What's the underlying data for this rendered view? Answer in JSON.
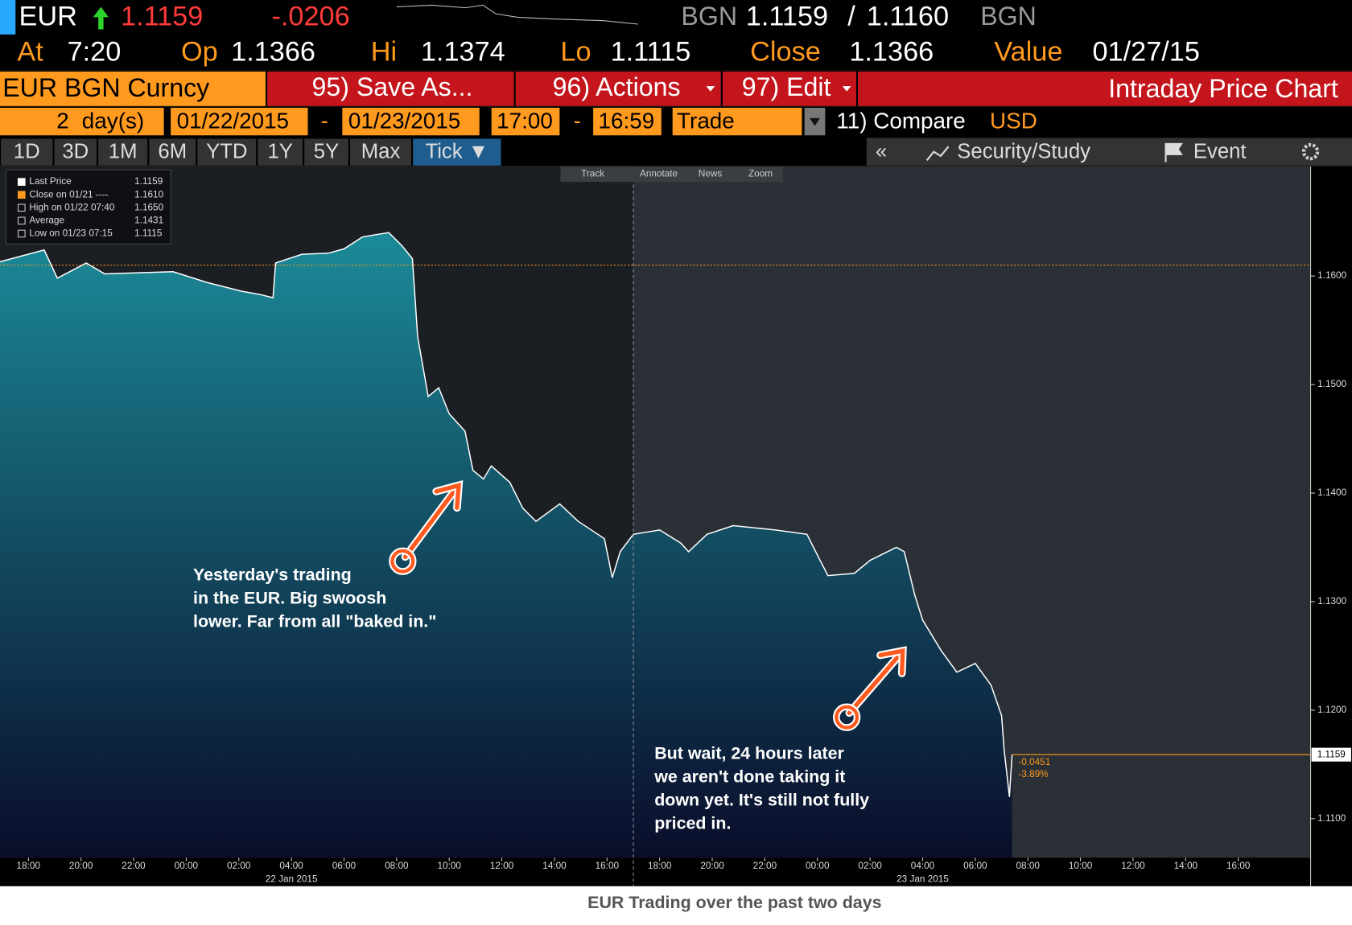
{
  "header": {
    "ticker": "EUR",
    "price": "1.1159",
    "change": "-.0206",
    "bid_source": "BGN",
    "bid": "1.1159",
    "separator": "/",
    "ask": "1.1160",
    "ask_source": "BGN",
    "fields": [
      {
        "label": "At",
        "value": "7:20"
      },
      {
        "label": "Op",
        "value": "1.1366"
      },
      {
        "label": "Hi",
        "value": "1.1374"
      },
      {
        "label": "Lo",
        "value": "1.1115"
      },
      {
        "label": "Close",
        "value": "1.1366"
      },
      {
        "label": "Value",
        "value": "01/27/15"
      }
    ]
  },
  "toolbar": {
    "security": "EUR BGN Curncy",
    "buttons": [
      "95) Save As...",
      "96) Actions",
      "97) Edit"
    ],
    "title": "Intraday Price Chart"
  },
  "settings": {
    "days": "2",
    "days_unit": "day(s)",
    "start_date": "01/22/2015",
    "dash": "-",
    "end_date": "01/23/2015",
    "start_time": "17:00",
    "end_time": "16:59",
    "type": "Trade",
    "compare": "11) Compare",
    "currency": "USD"
  },
  "tabs": {
    "periods": [
      "1D",
      "3D",
      "1M",
      "6M",
      "YTD",
      "1Y",
      "5Y",
      "Max",
      "Tick ▼"
    ],
    "collapse": "«",
    "study": "Security/Study",
    "event": "Event"
  },
  "chart_tools": [
    "Track",
    "Annotate",
    "News",
    "Zoom"
  ],
  "legend": [
    {
      "label": "Last Price",
      "value": "1.1159"
    },
    {
      "label": "Close on 01/21 ----",
      "value": "1.1610"
    },
    {
      "label": "High on 01/22 07:40",
      "value": "1.1650"
    },
    {
      "label": "Average",
      "value": "1.1431"
    },
    {
      "label": "Low on 01/23 07:15",
      "value": "1.1115"
    }
  ],
  "chart_data": {
    "type": "area",
    "x": [
      -1.1,
      0.6,
      1.1,
      2.2,
      2.9,
      4.2,
      5.5,
      6.8,
      8.1,
      8.8,
      9.3,
      9.4,
      10.4,
      11.4,
      12.0,
      12.7,
      13.7,
      14.2,
      14.6,
      14.8,
      15.2,
      15.6,
      16.0,
      16.6,
      16.9,
      17.3,
      17.6,
      18.3,
      18.8,
      19.3,
      20.2,
      20.9,
      21.9,
      22.2,
      22.5,
      23.0,
      24.0,
      24.8,
      25.1,
      25.8,
      26.8,
      28.4,
      29.6,
      30.1,
      30.4,
      31.4,
      32.0,
      33.0,
      33.3,
      33.7,
      34.0,
      34.7,
      35.3,
      36.0,
      36.6,
      37.0,
      37.1,
      37.3,
      37.4
    ],
    "values": [
      1.1613,
      1.1624,
      1.1598,
      1.1612,
      1.1602,
      1.1603,
      1.1604,
      1.1594,
      1.1586,
      1.1583,
      1.158,
      1.1612,
      1.162,
      1.1621,
      1.1625,
      1.1636,
      1.164,
      1.1628,
      1.1616,
      1.1544,
      1.1489,
      1.1497,
      1.1473,
      1.1457,
      1.1421,
      1.1413,
      1.1425,
      1.141,
      1.1386,
      1.1374,
      1.139,
      1.1374,
      1.1358,
      1.1322,
      1.1346,
      1.1362,
      1.1366,
      1.1354,
      1.1346,
      1.1362,
      1.137,
      1.1366,
      1.1362,
      1.1338,
      1.1324,
      1.1326,
      1.1338,
      1.135,
      1.1346,
      1.1306,
      1.1283,
      1.1255,
      1.1235,
      1.1243,
      1.1223,
      1.1195,
      1.1163,
      1.112,
      1.1159
    ],
    "line_color": "#ffffff",
    "fill_colors": [
      "#1b8a98",
      "#0a0d2a"
    ],
    "xlim": [
      -1.08,
      48.75
    ],
    "xticks": [
      {
        "value": 0,
        "label": "18:00"
      },
      {
        "value": 2,
        "label": "20:00"
      },
      {
        "value": 4,
        "label": "22:00"
      },
      {
        "value": 6,
        "label": "00:00"
      },
      {
        "value": 8,
        "label": "02:00"
      },
      {
        "value": 10,
        "label": "04:00"
      },
      {
        "value": 12,
        "label": "06:00"
      },
      {
        "value": 14,
        "label": "08:00"
      },
      {
        "value": 16,
        "label": "10:00"
      },
      {
        "value": 18,
        "label": "12:00"
      },
      {
        "value": 20,
        "label": "14:00"
      },
      {
        "value": 22,
        "label": "16:00"
      },
      {
        "value": 24,
        "label": "18:00"
      },
      {
        "value": 26,
        "label": "20:00"
      },
      {
        "value": 28,
        "label": "22:00"
      },
      {
        "value": 30,
        "label": "00:00"
      },
      {
        "value": 32,
        "label": "02:00"
      },
      {
        "value": 34,
        "label": "04:00"
      },
      {
        "value": 36,
        "label": "06:00"
      },
      {
        "value": 38,
        "label": "08:00"
      },
      {
        "value": 40,
        "label": "10:00"
      },
      {
        "value": 42,
        "label": "12:00"
      },
      {
        "value": 44,
        "label": "14:00"
      },
      {
        "value": 46,
        "label": "16:00"
      }
    ],
    "xdate_ticks": [
      {
        "value": 10,
        "label": "22 Jan 2015"
      },
      {
        "value": 34,
        "label": "23 Jan 2015"
      }
    ],
    "session_split": 23,
    "ylim": [
      1.1064,
      1.1701
    ],
    "yticks": [
      {
        "value": 1.11,
        "label": "1.1100"
      },
      {
        "value": 1.12,
        "label": "1.1200"
      },
      {
        "value": 1.13,
        "label": "1.1300"
      },
      {
        "value": 1.14,
        "label": "1.1400"
      },
      {
        "value": 1.15,
        "label": "1.1500"
      },
      {
        "value": 1.16,
        "label": "1.1600"
      }
    ],
    "close_value": 1.161,
    "last_value": {
      "value": 1.1159,
      "label": "1.1159"
    },
    "change_labels": [
      "-0.0451",
      "-3.89%"
    ]
  },
  "annotations": [
    {
      "lines": [
        "Yesterday's trading",
        "in the EUR.  Big swoosh",
        "lower.  Far from all \"baked in.\""
      ]
    },
    {
      "lines": [
        "But wait, 24 hours later",
        "we aren't done taking it",
        "down yet.  It's still not fully",
        "priced in."
      ]
    }
  ],
  "caption": "EUR Trading over the past two days"
}
